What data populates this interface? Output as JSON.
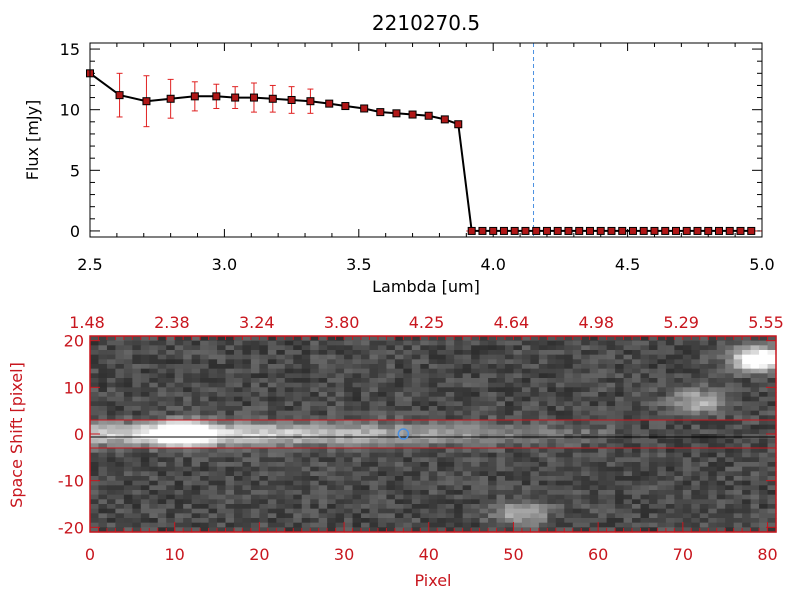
{
  "colors": {
    "axis_black": "#000000",
    "accent_red": "#c8161e",
    "errorbar_red": "#e02020",
    "marker_fill": "#b01818",
    "line_blue": "#4a90e2",
    "background": "#ffffff"
  },
  "chart_data": [
    {
      "type": "line",
      "title": "2210270.5",
      "xlabel": "Lambda [um]",
      "ylabel": "Flux [mJy]",
      "xlim": [
        2.5,
        5.0
      ],
      "ylim": [
        -0.5,
        15.5
      ],
      "xticks": [
        "2.5",
        "3.0",
        "3.5",
        "4.0",
        "4.5",
        "5.0"
      ],
      "yticks": [
        "0",
        "5",
        "10",
        "15"
      ],
      "vline_x": 4.15,
      "series": [
        {
          "name": "flux",
          "x": [
            2.5,
            2.61,
            2.71,
            2.8,
            2.89,
            2.97,
            3.04,
            3.11,
            3.18,
            3.25,
            3.32,
            3.39,
            3.45,
            3.52,
            3.58,
            3.64,
            3.7,
            3.76,
            3.82,
            3.87,
            3.92,
            3.96,
            4.0,
            4.04,
            4.08,
            4.12,
            4.16,
            4.2,
            4.24,
            4.28,
            4.32,
            4.36,
            4.4,
            4.44,
            4.48,
            4.52,
            4.56,
            4.6,
            4.64,
            4.68,
            4.72,
            4.76,
            4.8,
            4.84,
            4.88,
            4.92,
            4.96
          ],
          "y": [
            13.0,
            11.2,
            10.7,
            10.9,
            11.1,
            11.1,
            11.0,
            11.0,
            10.9,
            10.8,
            10.7,
            10.5,
            10.3,
            10.1,
            9.8,
            9.7,
            9.6,
            9.5,
            9.2,
            8.8,
            0.0,
            0.0,
            0.0,
            0.0,
            0.0,
            0.0,
            0.0,
            0.0,
            0.0,
            0.0,
            0.0,
            0.0,
            0.0,
            0.0,
            0.0,
            0.0,
            0.0,
            0.0,
            0.0,
            0.0,
            0.0,
            0.0,
            0.0,
            0.0,
            0.0,
            0.0,
            0.0
          ],
          "yerr": [
            0.0,
            1.8,
            2.1,
            1.6,
            1.2,
            1.0,
            0.9,
            1.2,
            1.1,
            1.1,
            1.0,
            0.0,
            0.0,
            0.0,
            0.0,
            0.0,
            0.0,
            0.0,
            0.0,
            0.0,
            0.0,
            0.0,
            0.0,
            0.0,
            0.0,
            0.0,
            0.0,
            0.0,
            0.0,
            0.0,
            0.0,
            0.0,
            0.0,
            0.0,
            0.0,
            0.0,
            0.0,
            0.0,
            0.0,
            0.0,
            0.0,
            0.0,
            0.0,
            0.0,
            0.0,
            0.0,
            0.0
          ]
        }
      ]
    },
    {
      "type": "heatmap",
      "title": "",
      "xlabel": "Pixel",
      "ylabel": "Space Shift [pixel]",
      "xlim": [
        0,
        81
      ],
      "ylim": [
        -21,
        21
      ],
      "xticks": [
        "0",
        "10",
        "20",
        "30",
        "40",
        "50",
        "60",
        "70",
        "80"
      ],
      "yticks": [
        "-20",
        "-10",
        "0",
        "10",
        "20"
      ],
      "top_axis_ticks": [
        "1.48",
        "2.38",
        "3.24",
        "3.80",
        "4.25",
        "4.64",
        "4.98",
        "5.29",
        "5.55"
      ],
      "extraction_band": [
        -3,
        3
      ],
      "marker": {
        "x": 37,
        "y": 0
      },
      "bright_spots": [
        {
          "x": 11,
          "y": 0,
          "amp": 1.0
        },
        {
          "x": 79,
          "y": 16,
          "amp": 1.0
        },
        {
          "x": 72,
          "y": 7,
          "amp": 0.45
        },
        {
          "x": 51,
          "y": -17,
          "amp": 0.4
        }
      ]
    }
  ]
}
